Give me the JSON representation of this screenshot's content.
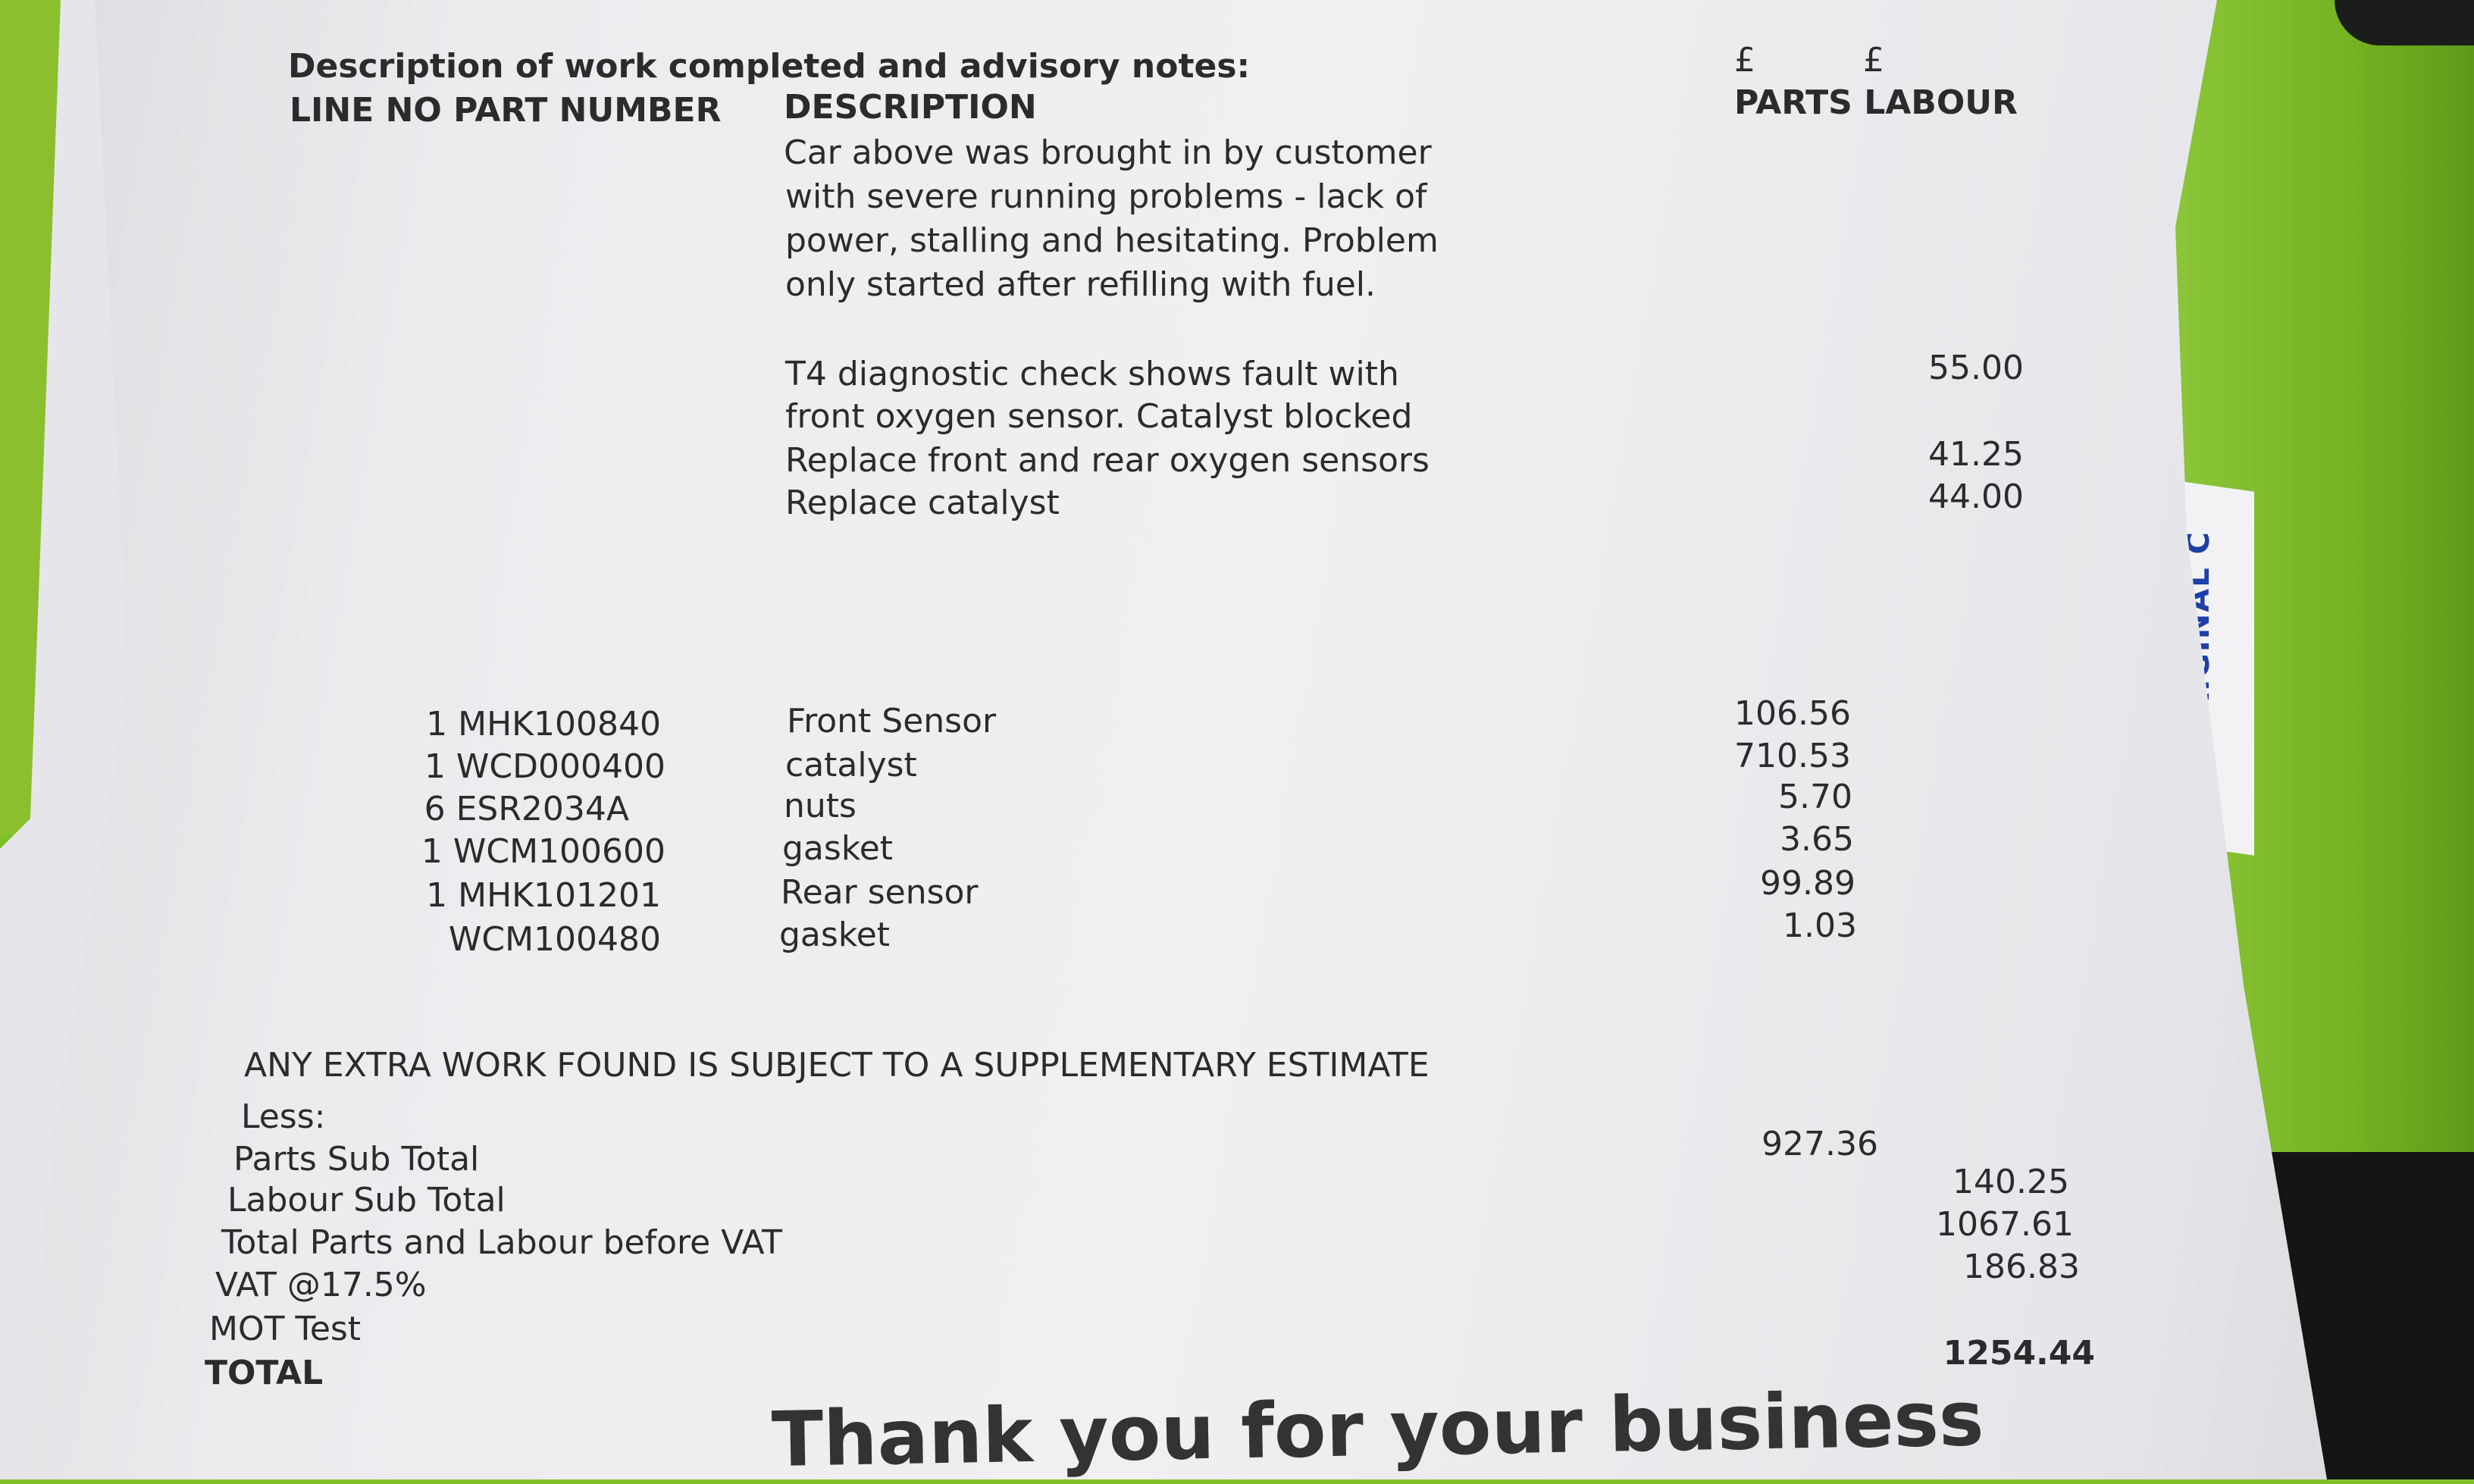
{
  "header": {
    "heading": "Description of work completed and advisory notes:",
    "col_line_part": "LINE NO PART NUMBER",
    "col_description": "DESCRIPTION",
    "currency_parts": "£",
    "currency_labour": "£",
    "col_parts_labour": "PARTS LABOUR"
  },
  "notes": [
    "Car above was brought in by customer",
    "with severe running problems - lack of",
    "power, stalling and hesitating. Problem",
    "only started after refilling with fuel."
  ],
  "labour_items": [
    {
      "lines": [
        "T4 diagnostic check shows fault with",
        "front oxygen sensor. Catalyst blocked"
      ],
      "labour": "55.00"
    },
    {
      "lines": [
        "Replace front and rear oxygen sensors"
      ],
      "labour": "41.25"
    },
    {
      "lines": [
        "Replace catalyst"
      ],
      "labour": "44.00"
    }
  ],
  "parts": [
    {
      "qty_part": "1 MHK100840",
      "description": "Front Sensor",
      "price": "106.56"
    },
    {
      "qty_part": "1 WCD000400",
      "description": "catalyst",
      "price": "710.53"
    },
    {
      "qty_part": "6 ESR2034A",
      "description": "nuts",
      "price": "5.70"
    },
    {
      "qty_part": "1 WCM100600",
      "description": "gasket",
      "price": "3.65"
    },
    {
      "qty_part": "1 MHK101201",
      "description": "Rear sensor",
      "price": "99.89"
    },
    {
      "qty_part": "WCM100480",
      "description": "gasket",
      "price": "1.03"
    }
  ],
  "footer": {
    "notice": "ANY EXTRA WORK FOUND IS SUBJECT TO A SUPPLEMENTARY ESTIMATE",
    "less": "Less:",
    "parts_sub_total_label": "Parts Sub Total",
    "parts_sub_total": "927.36",
    "labour_sub_total_label": "Labour Sub Total",
    "labour_sub_total": "140.25",
    "before_vat_label": "Total Parts and Labour before VAT",
    "before_vat": "1067.61",
    "vat_label": "VAT @17.5%",
    "vat": "186.83",
    "mot_label": "MOT Test",
    "total_label": "TOTAL",
    "total": "1254.44",
    "thanks": "Thank you for your business"
  },
  "envelope_text": "RIGINAL C"
}
